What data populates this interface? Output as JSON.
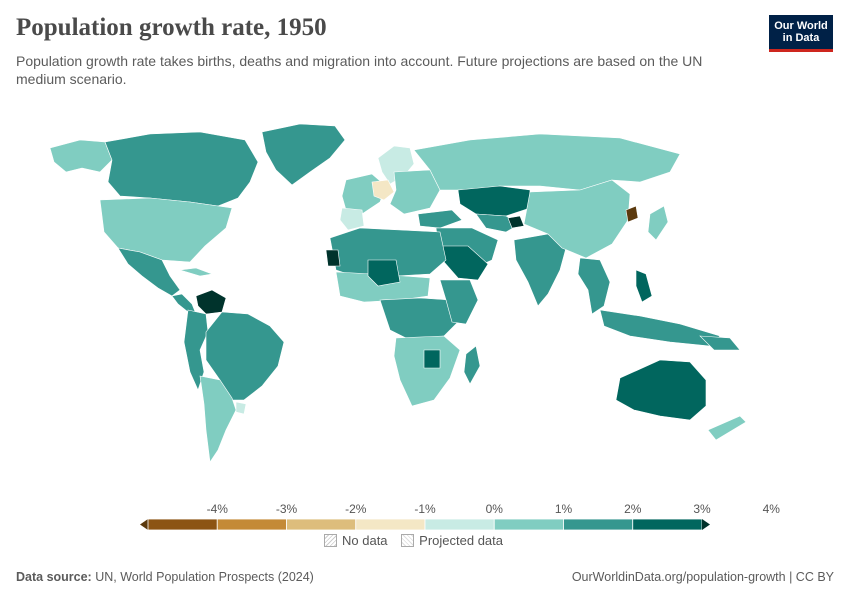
{
  "header": {
    "title": "Population growth rate, 1950",
    "subtitle": "Population growth rate takes births, deaths and migration into account. Future projections are based on the UN medium scenario."
  },
  "logo": {
    "line1": "Our World",
    "line2": "in Data"
  },
  "legend": {
    "tick_labels": [
      "-4%",
      "-3%",
      "-2%",
      "-1%",
      "0%",
      "1%",
      "2%",
      "3%",
      "4%"
    ],
    "bin_colors": [
      "#5c3a0e",
      "#8c5413",
      "#c48a37",
      "#ddbd7c",
      "#f4e7c5",
      "#c8ebe4",
      "#80cdc1",
      "#35978f",
      "#01665e",
      "#00332c"
    ],
    "no_data_label": "No data",
    "projected_label": "Projected data"
  },
  "map_colors": {
    "ocean": "#ffffff",
    "border": "#ffffff"
  },
  "footer": {
    "source_label": "Data source:",
    "source_text": "UN, World Population Prospects (2024)",
    "attribution": "OurWorldinData.org/population-growth | CC BY"
  }
}
